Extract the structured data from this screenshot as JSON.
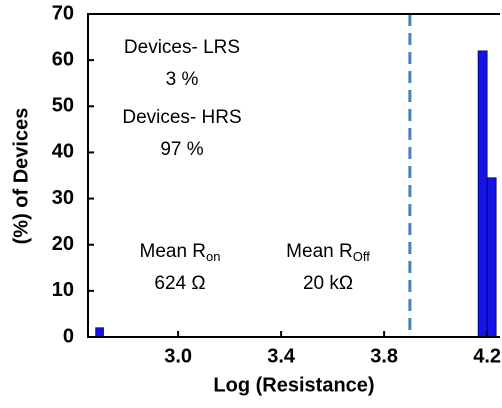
{
  "chart_data": {
    "type": "histogram",
    "xlabel": "Log (Resistance)",
    "ylabel": "(%) of Devices",
    "bins": [
      2.68,
      2.71,
      4.165,
      4.2,
      4.235
    ],
    "values": [
      2,
      0,
      62,
      34.5
    ],
    "color": "#1414e6",
    "xlim": [
      2.65,
      4.25
    ],
    "xticks": [
      {
        "value": 3.0,
        "label": "3.0"
      },
      3.4,
      3.8,
      4.2
    ],
    "ylim": [
      0,
      70
    ],
    "yticks": [
      0,
      10,
      20,
      30,
      40,
      50,
      60,
      70
    ],
    "threshold": 3.9,
    "threshold_color": "#4a7fc0",
    "annotations": [
      {
        "text": "Devices- LRS"
      },
      {
        "text": "3 %"
      },
      {
        "text": "Devices- HRS"
      },
      {
        "text": "97 %"
      },
      {
        "text": "Mean R",
        "sub": "on"
      },
      {
        "text": "624 Ω"
      },
      {
        "text": "Mean R",
        "sub": "Off"
      },
      {
        "text": "20 kΩ"
      }
    ]
  }
}
